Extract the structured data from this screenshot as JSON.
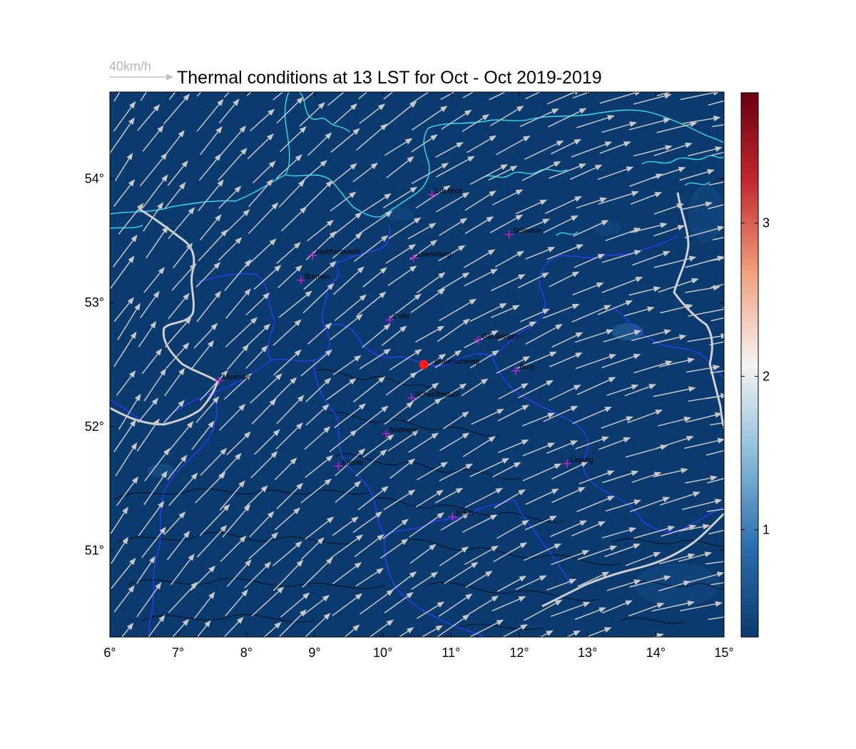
{
  "title": "Thermal conditions at 13 LST for Oct - Oct  2019-2019",
  "wind_legend": {
    "label": "40km/h",
    "color": "#c0c0c0"
  },
  "map": {
    "lon_range": [
      6,
      15
    ],
    "lat_range": [
      50.3,
      54.7
    ],
    "x_ticks": [
      6,
      7,
      8,
      9,
      10,
      11,
      12,
      13,
      14,
      15
    ],
    "x_tick_labels": [
      "6°",
      "7°",
      "8°",
      "9°",
      "10°",
      "11°",
      "12°",
      "13°",
      "14°",
      "15°"
    ],
    "y_ticks": [
      51,
      52,
      53,
      54
    ],
    "y_tick_labels": [
      "51°",
      "52°",
      "53°",
      "54°"
    ],
    "background_color": "#0a3a6e",
    "coast_color": "#33e0ee",
    "border_color": "#2a3cf0",
    "arrow_color": "#c8c8c8"
  },
  "colorbar": {
    "range": [
      0.3,
      3.85
    ],
    "ticks": [
      1,
      2,
      3
    ],
    "tick_labels": [
      "1",
      "2",
      "3"
    ],
    "colors": [
      "#0a3a6e",
      "#2d6fb0",
      "#8fc0dc",
      "#f4f4f4",
      "#f2a07e",
      "#c0282c",
      "#6a0010"
    ]
  },
  "site": {
    "name": "Braunschweig",
    "lon": 10.6,
    "lat": 52.5,
    "color": "#ff1a1a"
  },
  "cities": [
    {
      "name": "Luebeck",
      "lon": 10.72,
      "lat": 53.87
    },
    {
      "name": "Schwerin",
      "lon": 11.85,
      "lat": 53.55
    },
    {
      "name": "Huettenbusch",
      "lon": 8.97,
      "lat": 53.38
    },
    {
      "name": "Lueneburg",
      "lon": 10.45,
      "lat": 53.36
    },
    {
      "name": "Bremen",
      "lon": 8.8,
      "lat": 53.18
    },
    {
      "name": "Celle",
      "lon": 10.1,
      "lat": 52.86
    },
    {
      "name": "Gardelegen",
      "lon": 11.4,
      "lat": 52.7
    },
    {
      "name": "Burg",
      "lon": 11.95,
      "lat": 52.45
    },
    {
      "name": "Muenster",
      "lon": 7.6,
      "lat": 52.37
    },
    {
      "name": "Schaeferstuhl",
      "lon": 10.42,
      "lat": 52.23
    },
    {
      "name": "Northeim",
      "lon": 10.05,
      "lat": 51.94
    },
    {
      "name": "Kassel",
      "lon": 9.35,
      "lat": 51.68
    },
    {
      "name": "Leipzig",
      "lon": 12.7,
      "lat": 51.7
    },
    {
      "name": "Erfurt",
      "lon": 11.02,
      "lat": 51.27
    }
  ]
}
